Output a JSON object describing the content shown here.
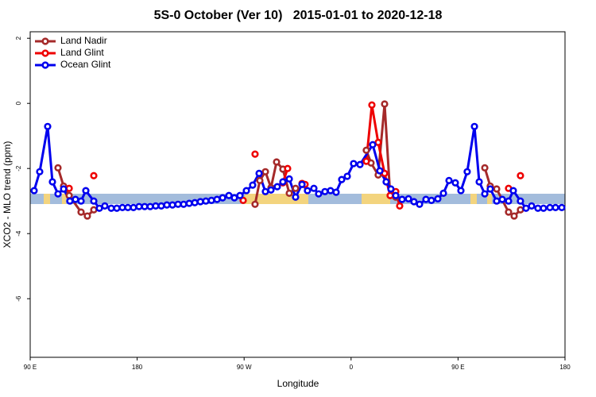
{
  "chart_data": {
    "type": "line",
    "title": "5S-0 October (Ver 10)   2015-01-01 to 2020-12-18",
    "xlabel": "Longitude",
    "ylabel": "XCO2 - MLO trend (ppm)",
    "xlim": [
      90,
      540
    ],
    "ylim": [
      -7.8,
      2.2
    ],
    "xticks": [
      {
        "value": 90,
        "label": "90 E"
      },
      180,
      {
        "value": 270,
        "label": "90 W"
      },
      {
        "value": 360,
        "label": "0"
      },
      {
        "value": 450,
        "label": "90 E"
      },
      {
        "value": 540,
        "label": "180"
      }
    ],
    "yticks": [
      -6,
      -4,
      -2,
      0,
      2
    ],
    "legend": "top-left",
    "series": [
      {
        "name": "Land Nadir",
        "color": "#a52a2a",
        "x": [
          113.4,
          118.1,
          122.8,
          132.8,
          138.1,
          143.5,
          null,
          279.2,
          283.2,
          287.9,
          292.6,
          297.3,
          302.6,
          308.0,
          313.3,
          null,
          372.8,
          376.8,
          382.8,
          388.2,
          392.9,
          397.6,
          null,
          472.5,
          477.1,
          482.5,
          492.5,
          497.2,
          502.5
        ],
        "values": [
          -1.98,
          -2.54,
          -2.83,
          -3.34,
          -3.46,
          -3.27,
          null,
          -3.1,
          -2.37,
          -2.1,
          -2.59,
          -1.8,
          -2.02,
          -2.76,
          -2.61,
          null,
          -1.44,
          -1.83,
          -2.2,
          -0.02,
          -2.83,
          -2.88,
          null,
          -1.98,
          -2.54,
          -2.63,
          -3.34,
          -3.46,
          -3.27
        ]
      },
      {
        "name": "Land Glint",
        "color": "#ee0000",
        "x": [
          122.8,
          null,
          143.5,
          null,
          269.2,
          null,
          279.2,
          null,
          302.6,
          306.6,
          null,
          318.7,
          321.3,
          null,
          372.8,
          377.5,
          382.8,
          388.2,
          392.9,
          397.6,
          400.9,
          null,
          492.5,
          null,
          502.5
        ],
        "values": [
          -2.61,
          null,
          -2.22,
          null,
          -2.98,
          null,
          -1.56,
          null,
          -2.44,
          -2.0,
          null,
          -2.46,
          -2.49,
          null,
          -1.78,
          -0.05,
          -1.2,
          -2.15,
          -2.83,
          -2.71,
          -3.15,
          null,
          -2.61,
          null,
          -2.22
        ]
      },
      {
        "name": "Ocean Glint",
        "color": "#0000ee",
        "x": [
          93.3,
          98.0,
          104.7,
          108.7,
          113.4,
          118.1,
          123.4,
          128.1,
          132.8,
          136.8,
          143.5,
          148.2,
          152.8,
          158.2,
          162.9,
          167.6,
          172.2,
          176.9,
          181.6,
          186.3,
          191.0,
          195.6,
          200.3,
          205.0,
          209.7,
          214.4,
          219.1,
          223.8,
          228.5,
          233.2,
          237.8,
          242.5,
          247.2,
          251.9,
          257.2,
          261.8,
          266.5,
          271.9,
          277.2,
          282.6,
          287.9,
          292.6,
          297.9,
          302.6,
          308.0,
          313.3,
          318.7,
          323.3,
          328.7,
          332.7,
          338.0,
          342.7,
          347.4,
          352.1,
          356.8,
          362.1,
          367.5,
          378.2,
          384.2,
          389.5,
          393.5,
          397.6,
          402.9,
          408.3,
          412.9,
          417.6,
          423.0,
          427.6,
          433.0,
          437.7,
          442.4,
          447.7,
          452.4,
          457.7,
          463.8,
          467.8,
          472.5,
          477.1,
          482.5,
          487.2,
          492.5,
          496.5,
          502.5,
          507.2,
          511.9,
          517.2,
          521.9,
          527.3,
          532.0,
          537.3
        ],
        "values": [
          -2.68,
          -2.1,
          -0.71,
          -2.41,
          -2.78,
          -2.63,
          -3.0,
          -2.95,
          -3.0,
          -2.68,
          -3.0,
          -3.22,
          -3.15,
          -3.22,
          -3.22,
          -3.2,
          -3.2,
          -3.2,
          -3.17,
          -3.17,
          -3.17,
          -3.15,
          -3.15,
          -3.12,
          -3.12,
          -3.1,
          -3.1,
          -3.07,
          -3.05,
          -3.02,
          -3.0,
          -2.98,
          -2.95,
          -2.9,
          -2.83,
          -2.9,
          -2.83,
          -2.68,
          -2.51,
          -2.15,
          -2.71,
          -2.66,
          -2.56,
          -2.41,
          -2.32,
          -2.88,
          -2.49,
          -2.68,
          -2.61,
          -2.78,
          -2.71,
          -2.68,
          -2.73,
          -2.34,
          -2.24,
          -1.85,
          -1.88,
          -1.27,
          -2.07,
          -2.41,
          -2.63,
          -2.83,
          -2.95,
          -2.93,
          -3.02,
          -3.1,
          -2.95,
          -2.98,
          -2.93,
          -2.76,
          -2.37,
          -2.44,
          -2.68,
          -2.1,
          -0.71,
          -2.41,
          -2.78,
          -2.63,
          -3.0,
          -2.95,
          -3.0,
          -2.68,
          -3.0,
          -3.22,
          -3.15,
          -3.22,
          -3.22,
          -3.2,
          -3.2,
          -3.2
        ]
      }
    ]
  }
}
